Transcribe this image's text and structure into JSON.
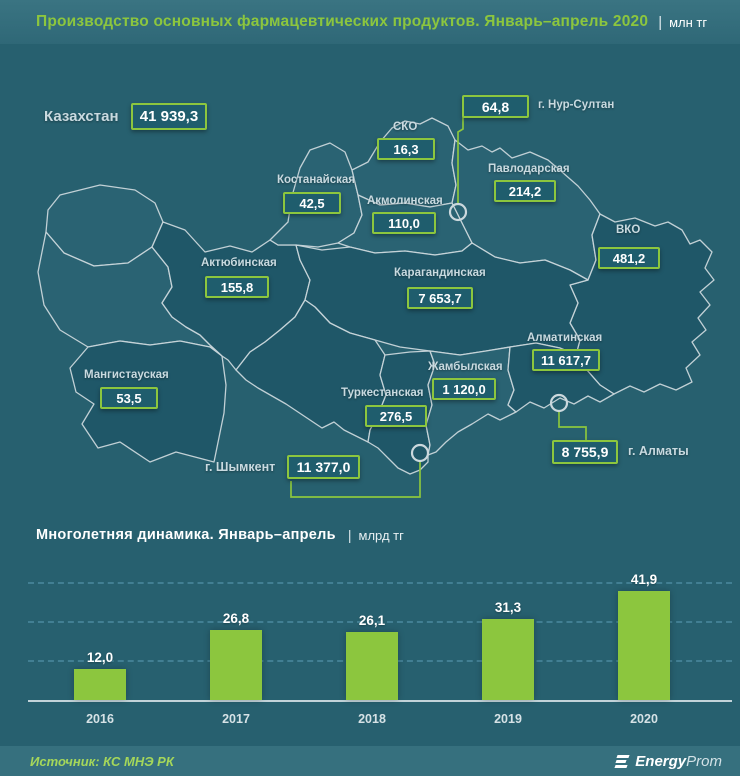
{
  "header": {
    "title": "Производство основных фармацевтических продуктов. Январь–апрель 2020",
    "separator": "|",
    "unit": "млн тг"
  },
  "map": {
    "country": {
      "name": "Казахстан",
      "value": "41 939,3"
    },
    "regions": {
      "nursultan": {
        "name": "г. Нур-Султан",
        "value": "64,8"
      },
      "sko": {
        "name": "СКО",
        "value": "16,3"
      },
      "kostanay": {
        "name": "Костанайская",
        "value": "42,5"
      },
      "pavlodar": {
        "name": "Павлодарская",
        "value": "214,2"
      },
      "akmola": {
        "name": "Акмолинская",
        "value": "110,0"
      },
      "vko": {
        "name": "ВКО",
        "value": "481,2"
      },
      "aktobe": {
        "name": "Актюбинская",
        "value": "155,8"
      },
      "karaganda": {
        "name": "Карагандинская",
        "value": "7 653,7"
      },
      "almaty_region": {
        "name": "Алматинская",
        "value": "11 617,7"
      },
      "mangystau": {
        "name": "Мангистауская",
        "value": "53,5"
      },
      "zhambyl": {
        "name": "Жамбылская",
        "value": "1 120,0"
      },
      "turkestan": {
        "name": "Туркестанская",
        "value": "276,5"
      },
      "shymkent": {
        "name": "г. Шымкент",
        "value": "11 377,0"
      },
      "almaty_city": {
        "name": "г. Алматы",
        "value": "8 755,9"
      }
    }
  },
  "chart": {
    "title": "Многолетняя динамика.  Январь–апрель",
    "separator": "|",
    "unit": "млрд тг"
  },
  "chart_data": {
    "type": "bar",
    "title": "Многолетняя динамика. Январь–апрель",
    "ylabel": "млрд тг",
    "categories": [
      "2016",
      "2017",
      "2018",
      "2019",
      "2020"
    ],
    "values": [
      12.0,
      26.8,
      26.1,
      31.3,
      41.9
    ],
    "value_labels": [
      "12,0",
      "26,8",
      "26,1",
      "31,3",
      "41,9"
    ],
    "ylim": [
      0,
      45
    ],
    "gridlines": [
      15,
      30,
      45
    ],
    "grid": "dashed-horizontal",
    "legend": null,
    "bar_color": "#8CC63E"
  },
  "footer": {
    "source": "Источник: КС МНЭ РК",
    "brand": {
      "bold": "Energy",
      "light": "Prom"
    }
  },
  "colors": {
    "accent_green": "#8CC63E",
    "header_bg": "#336D7C",
    "body_bg": "#27606F",
    "region_light": "#2B6474",
    "region_dark": "#1F5768",
    "box_bg": "#1F5D6D",
    "footer_bg": "#36707E",
    "text_light": "#C9DAE0"
  }
}
